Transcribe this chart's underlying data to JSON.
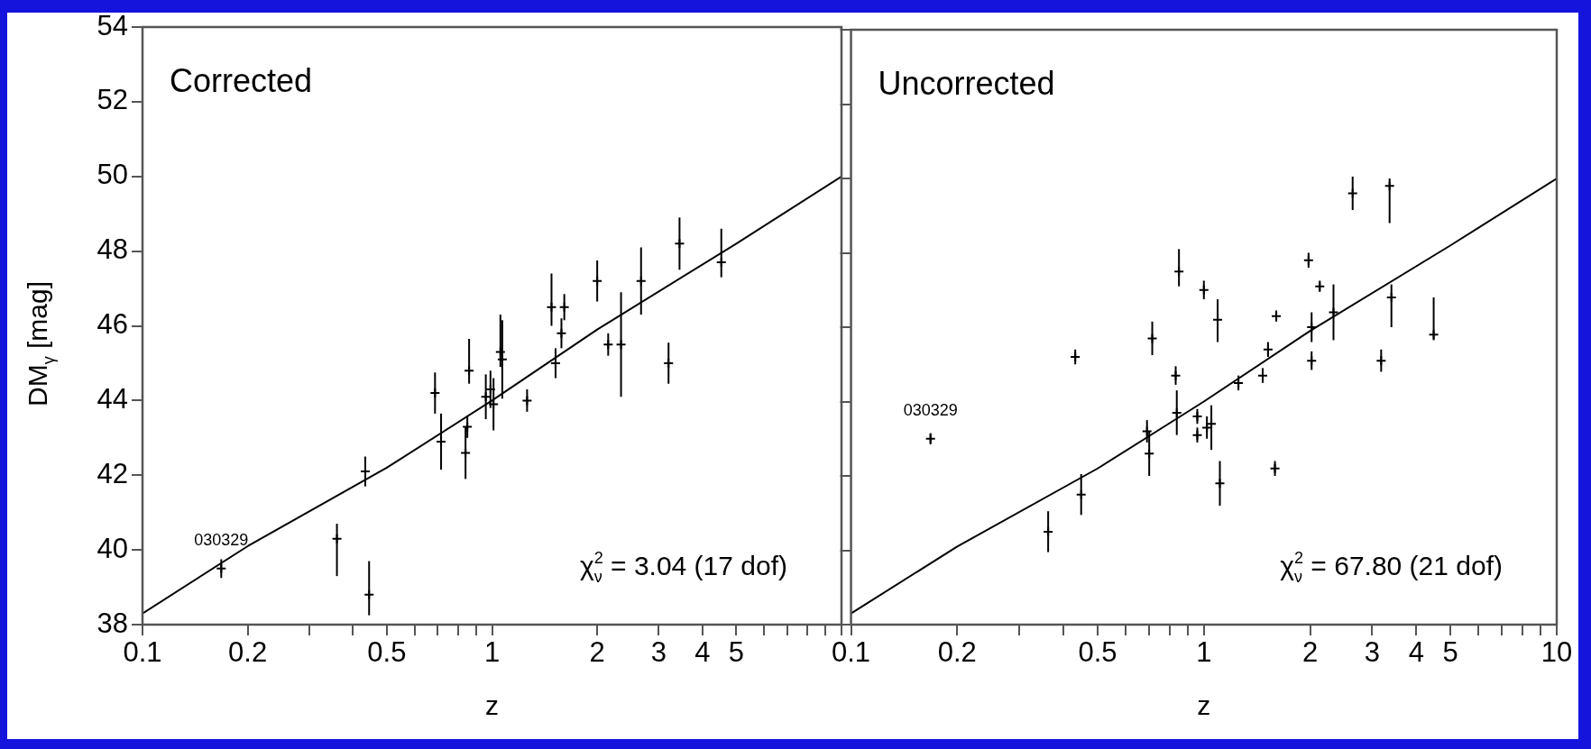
{
  "chart_data": [
    {
      "type": "scatter",
      "title": "Corrected",
      "xlabel": "z",
      "ylabel": "DM$_{γ}$ [mag]",
      "log": "x",
      "grid": false,
      "legend": false,
      "xlim": [
        0.1,
        10
      ],
      "xticks": [
        0.1,
        0.2,
        {
          "value": 0.3,
          "label": null
        },
        {
          "value": 0.4,
          "label": null
        },
        0.5,
        {
          "value": 0.6,
          "label": null
        },
        {
          "value": 0.7,
          "label": null
        },
        {
          "value": 0.8,
          "label": null
        },
        {
          "value": 0.9,
          "label": null
        },
        1,
        2,
        3,
        4,
        5,
        {
          "value": 6,
          "label": null
        },
        {
          "value": 7,
          "label": null
        },
        {
          "value": 8,
          "label": null
        },
        {
          "value": 9,
          "label": null
        },
        {
          "value": 10,
          "label": null
        }
      ],
      "ylim": [
        38,
        54
      ],
      "yticks": [
        38,
        40,
        42,
        44,
        46,
        48,
        50,
        52,
        54
      ],
      "annotations": [
        {
          "text": "030329",
          "x": 0.168,
          "y": 39.5
        },
        "χ$^{2}$$_{ν}$ = 3.04 (17 dof)"
      ],
      "series": [
        {
          "type": "scatter",
          "marker": "cross",
          "color": "#000000",
          "x": [
            0.168,
            0.36,
            0.445,
            0.434,
            0.687,
            0.715,
            0.84,
            0.85,
            0.86,
            0.96,
            0.99,
            1.01,
            1.057,
            1.07,
            1.26,
            1.48,
            1.52,
            1.58,
            1.61,
            2.0,
            2.15,
            2.34,
            2.67,
            3.2,
            3.44,
            4.53
          ],
          "values": [
            39.5,
            40.3,
            38.8,
            42.1,
            44.2,
            42.9,
            42.6,
            43.3,
            44.8,
            44.1,
            44.3,
            43.9,
            45.3,
            45.1,
            44.0,
            46.5,
            45.0,
            45.8,
            46.5,
            47.2,
            45.5,
            45.5,
            47.2,
            45.0,
            48.2,
            47.7
          ],
          "errors": [
            0.25,
            [
              39.3,
              40.7
            ],
            [
              38.25,
              39.7
            ],
            0.4,
            0.55,
            0.75,
            0.7,
            0.3,
            [
              44.45,
              45.65
            ],
            0.6,
            0.5,
            0.7,
            [
              44.9,
              46.3
            ],
            1.05,
            0.3,
            [
              46.0,
              47.4
            ],
            0.4,
            0.4,
            0.35,
            0.55,
            0.3,
            1.4,
            0.9,
            0.55,
            0.7,
            [
              47.3,
              48.6
            ]
          ]
        },
        {
          "type": "line",
          "color": "#000000",
          "x": [
            0.1,
            0.2,
            0.5,
            1,
            2,
            5,
            10
          ],
          "values": [
            38.3,
            40.1,
            42.2,
            44.0,
            45.9,
            48.2,
            50.0
          ]
        }
      ]
    },
    {
      "type": "scatter",
      "title": "Uncorrected",
      "xlabel": "z",
      "log": "x",
      "grid": false,
      "legend": false,
      "tick_labels": "x",
      "xlim": [
        0.1,
        10
      ],
      "xticks": [
        0.1,
        0.2,
        {
          "value": 0.3,
          "label": null
        },
        {
          "value": 0.4,
          "label": null
        },
        0.5,
        {
          "value": 0.6,
          "label": null
        },
        {
          "value": 0.7,
          "label": null
        },
        {
          "value": 0.8,
          "label": null
        },
        {
          "value": 0.9,
          "label": null
        },
        1,
        2,
        3,
        4,
        5,
        {
          "value": 6,
          "label": null
        },
        {
          "value": 7,
          "label": null
        },
        {
          "value": 8,
          "label": null
        },
        {
          "value": 9,
          "label": null
        },
        10
      ],
      "ylim": [
        38,
        54
      ],
      "yticks": [
        38,
        40,
        42,
        44,
        46,
        48,
        50,
        52,
        54
      ],
      "annotations": [
        {
          "text": "030329",
          "x": 0.168,
          "y": 43.0
        },
        "χ$^{2}$$_{ν}$ = 67.80 (21 dof)"
      ],
      "series": [
        {
          "type": "scatter",
          "marker": "cross",
          "color": "#000000",
          "x": [
            0.168,
            0.362,
            0.432,
            0.449,
            0.69,
            0.7,
            0.714,
            0.832,
            0.838,
            0.85,
            0.958,
            0.958,
            1.0,
            1.02,
            1.05,
            1.094,
            1.11,
            1.253,
            1.468,
            1.52,
            1.59,
            1.604,
            1.98,
            2.02,
            2.02,
            2.13,
            2.33,
            2.64,
            3.18,
            3.36,
            3.4,
            4.48
          ],
          "values": [
            43.0,
            40.5,
            45.2,
            41.5,
            43.2,
            42.6,
            45.7,
            44.7,
            43.7,
            47.5,
            43.6,
            43.1,
            47.0,
            43.3,
            43.4,
            46.2,
            41.8,
            44.5,
            44.7,
            45.4,
            42.2,
            46.3,
            47.8,
            46.0,
            45.1,
            47.1,
            46.4,
            49.6,
            45.1,
            49.8,
            46.8,
            45.8
          ],
          "errors": [
            0.15,
            0.55,
            0.2,
            0.55,
            0.3,
            0.6,
            0.45,
            0.25,
            0.6,
            [
              47.1,
              48.1
            ],
            0.2,
            0.2,
            0.25,
            0.3,
            [
              42.7,
              43.9
            ],
            [
              45.6,
              46.75
            ],
            0.6,
            0.2,
            0.2,
            0.2,
            0.2,
            0.15,
            0.2,
            0.4,
            0.25,
            0.15,
            0.75,
            0.45,
            0.3,
            [
              48.8,
              50.0
            ],
            [
              46.0,
              47.15
            ],
            [
              45.65,
              46.8
            ]
          ]
        },
        {
          "type": "line",
          "color": "#000000",
          "x": [
            0.1,
            0.2,
            0.5,
            1,
            2,
            5,
            10
          ],
          "values": [
            38.3,
            40.1,
            42.2,
            44.0,
            45.9,
            48.2,
            50.0
          ]
        }
      ]
    }
  ]
}
